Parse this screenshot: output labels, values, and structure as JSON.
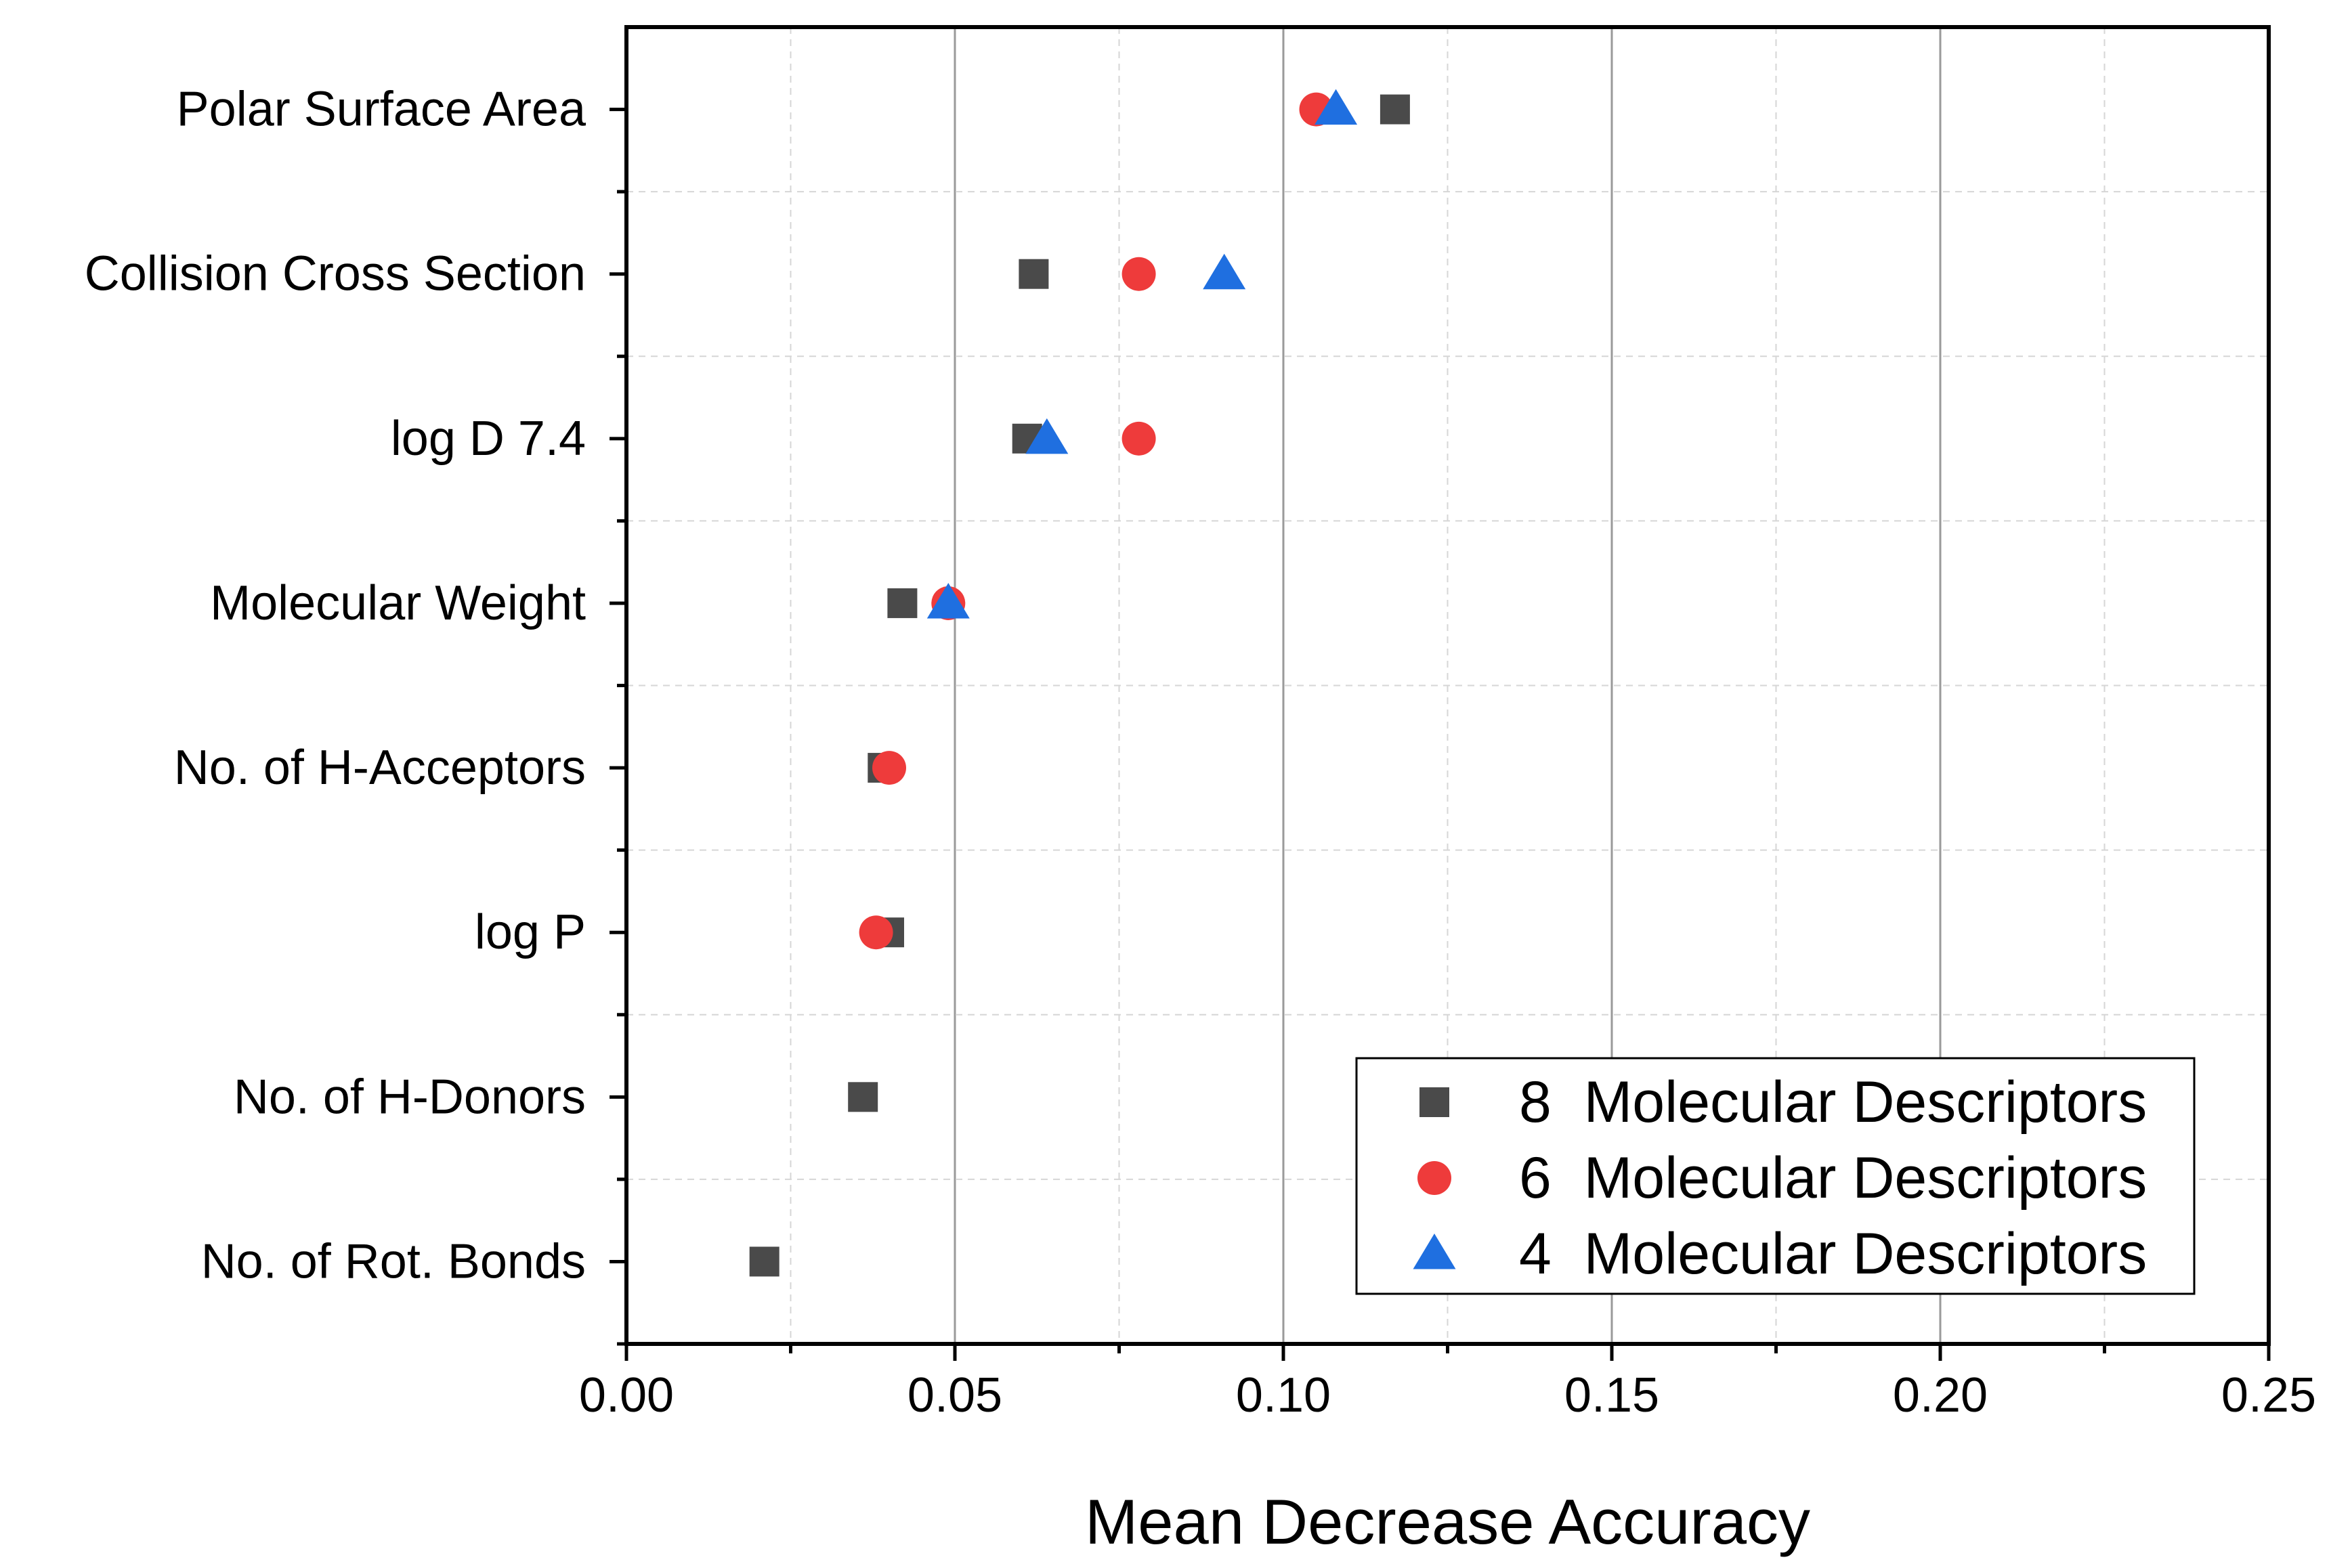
{
  "chart_data": {
    "type": "scatter",
    "title": "",
    "xlabel": "Mean Decrease Accuracy",
    "ylabel": "",
    "xlim": [
      0,
      0.25
    ],
    "x_ticks": [
      "0.00",
      "0.05",
      "0.10",
      "0.15",
      "0.20",
      "0.25"
    ],
    "x_tick_values": [
      0,
      0.05,
      0.1,
      0.15,
      0.2,
      0.25
    ],
    "grid": true,
    "legend_position": "bottom-right",
    "categories": [
      "Polar Surface Area",
      "Collision Cross Section",
      "log D 7.4",
      "Molecular Weight",
      "No. of H-Acceptors",
      "log P",
      "No. of H-Donors",
      "No. of Rot. Bonds"
    ],
    "series": [
      {
        "name": "8  Molecular Descriptors",
        "marker": "square",
        "color": "#4a4a4a",
        "values": [
          0.117,
          0.062,
          0.061,
          0.042,
          0.039,
          0.04,
          0.036,
          0.021
        ]
      },
      {
        "name": "6  Molecular Descriptors",
        "marker": "circle",
        "color": "#ee3b3b",
        "values": [
          0.105,
          0.078,
          0.078,
          0.049,
          0.04,
          0.038,
          null,
          null
        ]
      },
      {
        "name": "4  Molecular Descriptors",
        "marker": "triangle",
        "color": "#1f6fe0",
        "values": [
          0.108,
          0.091,
          0.064,
          0.049,
          null,
          null,
          null,
          null
        ]
      }
    ]
  }
}
